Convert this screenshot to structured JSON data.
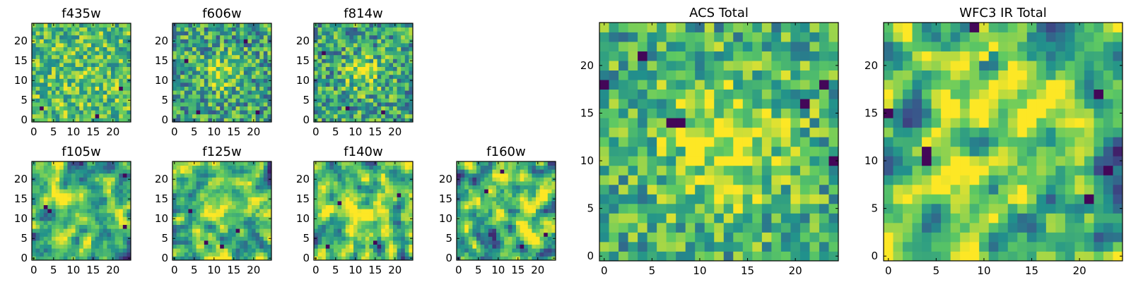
{
  "colormap": [
    "#440154",
    "#3b528b",
    "#21918c",
    "#5ec962",
    "#fde725"
  ],
  "chart_data": [
    {
      "type": "heatmap",
      "title": "f435w",
      "grid_size": 25,
      "xticks": [
        "0",
        "5",
        "10",
        "15",
        "20"
      ],
      "yticks": [
        "0",
        "5",
        "10",
        "15",
        "20"
      ],
      "xlim": [
        -0.5,
        24.5
      ],
      "ylim": [
        -0.5,
        24.5
      ],
      "seed": 11,
      "smooth": 0,
      "base": 0.7,
      "amp": 0.28,
      "blob": {
        "cx": 12,
        "cy": 11,
        "sigma": 4,
        "gain": 0.05
      },
      "dark_spots": [
        [
          2,
          3
        ],
        [
          16,
          1
        ],
        [
          22,
          8
        ]
      ]
    },
    {
      "type": "heatmap",
      "title": "f606w",
      "grid_size": 25,
      "xticks": [
        "0",
        "5",
        "10",
        "15",
        "20"
      ],
      "yticks": [
        "0",
        "5",
        "10",
        "15",
        "20"
      ],
      "xlim": [
        -0.5,
        24.5
      ],
      "ylim": [
        -0.5,
        24.5
      ],
      "seed": 23,
      "smooth": 0,
      "base": 0.58,
      "amp": 0.32,
      "blob": {
        "cx": 12,
        "cy": 12,
        "sigma": 3,
        "gain": 0.3
      },
      "dark_spots": [
        [
          3,
          15
        ],
        [
          18,
          20
        ],
        [
          21,
          2
        ],
        [
          6,
          2
        ]
      ]
    },
    {
      "type": "heatmap",
      "title": "f814w",
      "grid_size": 25,
      "xticks": [
        "0",
        "5",
        "10",
        "15",
        "20"
      ],
      "yticks": [
        "0",
        "5",
        "10",
        "15",
        "20"
      ],
      "xlim": [
        -0.5,
        24.5
      ],
      "ylim": [
        -0.5,
        24.5
      ],
      "seed": 37,
      "smooth": 0,
      "base": 0.58,
      "amp": 0.32,
      "blob": {
        "cx": 12,
        "cy": 12,
        "sigma": 3,
        "gain": 0.32
      },
      "dark_spots": [
        [
          8,
          3
        ],
        [
          2,
          17
        ],
        [
          17,
          2
        ]
      ]
    },
    {
      "type": "heatmap",
      "title": "f105w",
      "grid_size": 25,
      "xticks": [
        "0",
        "5",
        "10",
        "15",
        "20"
      ],
      "yticks": [
        "0",
        "5",
        "10",
        "15",
        "20"
      ],
      "xlim": [
        -0.5,
        24.5
      ],
      "ylim": [
        -0.5,
        24.5
      ],
      "seed": 41,
      "smooth": 1,
      "base": 0.64,
      "amp": 0.55,
      "blob": {
        "cx": 12,
        "cy": 12,
        "sigma": 5,
        "gain": 0.15
      },
      "dark_spots": [
        [
          3,
          13
        ],
        [
          4,
          12
        ],
        [
          23,
          21
        ],
        [
          23,
          8
        ]
      ]
    },
    {
      "type": "heatmap",
      "title": "f125w",
      "grid_size": 25,
      "xticks": [
        "0",
        "5",
        "10",
        "15",
        "20"
      ],
      "yticks": [
        "0",
        "5",
        "10",
        "15",
        "20"
      ],
      "xlim": [
        -0.5,
        24.5
      ],
      "ylim": [
        -0.5,
        24.5
      ],
      "seed": 53,
      "smooth": 1,
      "base": 0.64,
      "amp": 0.55,
      "blob": {
        "cx": 12,
        "cy": 12,
        "sigma": 5,
        "gain": 0.12
      },
      "dark_spots": [
        [
          8,
          4
        ],
        [
          12,
          3
        ],
        [
          16,
          7
        ],
        [
          4,
          12
        ]
      ]
    },
    {
      "type": "heatmap",
      "title": "f140w",
      "grid_size": 25,
      "xticks": [
        "0",
        "5",
        "10",
        "15",
        "20"
      ],
      "yticks": [
        "0",
        "5",
        "10",
        "15",
        "20"
      ],
      "xlim": [
        -0.5,
        24.5
      ],
      "ylim": [
        -0.5,
        24.5
      ],
      "seed": 67,
      "smooth": 1,
      "base": 0.64,
      "amp": 0.55,
      "blob": {
        "cx": 12,
        "cy": 12,
        "sigma": 5,
        "gain": 0.12
      },
      "dark_spots": [
        [
          6,
          14
        ],
        [
          21,
          16
        ],
        [
          15,
          4
        ],
        [
          3,
          3
        ]
      ]
    },
    {
      "type": "heatmap",
      "title": "f160w",
      "grid_size": 25,
      "xticks": [
        "0",
        "5",
        "10",
        "15",
        "20"
      ],
      "yticks": [
        "0",
        "5",
        "10",
        "15",
        "20"
      ],
      "xlim": [
        -0.5,
        24.5
      ],
      "ylim": [
        -0.5,
        24.5
      ],
      "seed": 79,
      "smooth": 1,
      "base": 0.64,
      "amp": 0.55,
      "blob": {
        "cx": 13,
        "cy": 14,
        "sigma": 5,
        "gain": 0.15
      },
      "dark_spots": [
        [
          11,
          22
        ],
        [
          7,
          17
        ],
        [
          22,
          6
        ],
        [
          16,
          3
        ]
      ]
    },
    {
      "type": "heatmap",
      "title": "ACS Total",
      "grid_size": 25,
      "xticks": [
        "0",
        "5",
        "10",
        "15",
        "20"
      ],
      "yticks": [
        "0",
        "5",
        "10",
        "15",
        "20"
      ],
      "xlim": [
        -0.5,
        24.5
      ],
      "ylim": [
        -0.5,
        24.5
      ],
      "seed": 97,
      "smooth": 0,
      "base": 0.62,
      "amp": 0.28,
      "blob": {
        "cx": 13,
        "cy": 12,
        "sigma": 5,
        "gain": 0.32
      },
      "dark_spots": [
        [
          4,
          21
        ],
        [
          0,
          18
        ],
        [
          8,
          14
        ],
        [
          7,
          14
        ],
        [
          21,
          16
        ],
        [
          24,
          10
        ],
        [
          23,
          18
        ]
      ]
    },
    {
      "type": "heatmap",
      "title": "WFC3 IR Total",
      "grid_size": 25,
      "xticks": [
        "0",
        "5",
        "10",
        "15",
        "20"
      ],
      "yticks": [
        "0",
        "5",
        "10",
        "15",
        "20"
      ],
      "xlim": [
        -0.5,
        24.5
      ],
      "ylim": [
        -0.5,
        24.5
      ],
      "seed": 113,
      "smooth": 1,
      "base": 0.62,
      "amp": 0.55,
      "blob": {
        "cx": 12,
        "cy": 12,
        "sigma": 6,
        "gain": 0.2
      },
      "dark_spots": [
        [
          4,
          11
        ],
        [
          4,
          10
        ],
        [
          0,
          15
        ],
        [
          23,
          9
        ],
        [
          22,
          17
        ],
        [
          21,
          6
        ],
        [
          9,
          24
        ]
      ],
      "bright_spots": [
        [
          10,
          21
        ],
        [
          11,
          22
        ]
      ]
    }
  ]
}
